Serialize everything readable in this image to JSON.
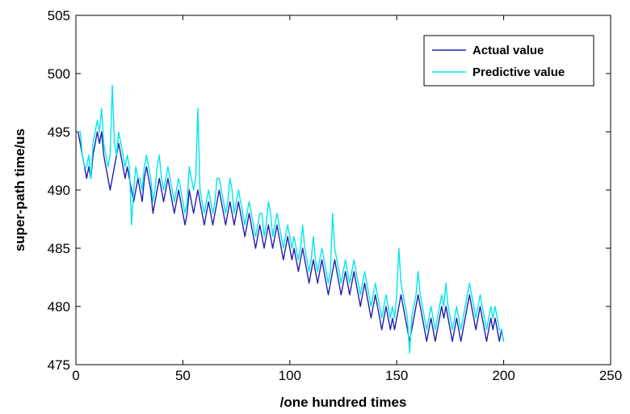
{
  "chart_data": {
    "type": "line",
    "title": "",
    "xlabel": "/one hundred times",
    "ylabel": "super-path time/us",
    "xlim": [
      0,
      250
    ],
    "ylim": [
      475,
      505
    ],
    "x_ticks": [
      0,
      50,
      100,
      150,
      200,
      250
    ],
    "y_ticks": [
      475,
      480,
      485,
      490,
      495,
      500,
      505
    ],
    "x_tick_labels": [
      "0",
      "50",
      "100",
      "150",
      "200",
      "250"
    ],
    "y_tick_labels": [
      "475",
      "480",
      "485",
      "490",
      "495",
      "500",
      "505"
    ],
    "grid": false,
    "legend_position": "top-right",
    "series": [
      {
        "name": "Actual value",
        "color": "#2020b0",
        "x_start": 1,
        "x_step": 1,
        "values": [
          495,
          494,
          493,
          492,
          491,
          492,
          491,
          493,
          494,
          495,
          494,
          495,
          493,
          492,
          491,
          490,
          491,
          492,
          493,
          494,
          493,
          492,
          491,
          492,
          491,
          490,
          489,
          490,
          491,
          490,
          489,
          491,
          492,
          491,
          490,
          488,
          489,
          490,
          491,
          490,
          489,
          490,
          491,
          490,
          489,
          488,
          489,
          490,
          489,
          488,
          487,
          488,
          490,
          489,
          488,
          489,
          490,
          489,
          488,
          487,
          488,
          489,
          488,
          487,
          488,
          489,
          490,
          489,
          488,
          487,
          488,
          489,
          488,
          487,
          488,
          489,
          488,
          487,
          486,
          487,
          488,
          487,
          486,
          485,
          486,
          487,
          486,
          485,
          486,
          487,
          486,
          485,
          486,
          487,
          486,
          485,
          484,
          485,
          486,
          485,
          484,
          485,
          484,
          483,
          484,
          485,
          484,
          483,
          482,
          483,
          484,
          483,
          482,
          483,
          484,
          483,
          482,
          481,
          482,
          483,
          484,
          483,
          482,
          481,
          482,
          483,
          482,
          481,
          482,
          483,
          482,
          481,
          480,
          481,
          482,
          481,
          480,
          479,
          480,
          481,
          480,
          479,
          478,
          479,
          480,
          479,
          478,
          479,
          478,
          479,
          480,
          481,
          480,
          479,
          478,
          477,
          478,
          479,
          480,
          481,
          480,
          479,
          478,
          477,
          478,
          479,
          478,
          477,
          478,
          479,
          480,
          479,
          480,
          479,
          478,
          477,
          478,
          479,
          478,
          477,
          478,
          479,
          480,
          481,
          480,
          479,
          478,
          479,
          480,
          479,
          478,
          477,
          478,
          479,
          478,
          479,
          478,
          477,
          478,
          477
        ]
      },
      {
        "name": "Predictive value",
        "color": "#00e5ee",
        "x_start": 1,
        "x_step": 1,
        "values": [
          495,
          495,
          493,
          492,
          492,
          493,
          491,
          494,
          495,
          496,
          495,
          497,
          494,
          493,
          492,
          493,
          499,
          494,
          493,
          495,
          494,
          493,
          492,
          493,
          492,
          487,
          490,
          492,
          491,
          491,
          490,
          492,
          493,
          492,
          491,
          489,
          490,
          492,
          493,
          491,
          490,
          491,
          492,
          491,
          490,
          489,
          490,
          491,
          490,
          489,
          488,
          489,
          492,
          491,
          490,
          491,
          497,
          490,
          489,
          488,
          489,
          490,
          489,
          488,
          489,
          491,
          491,
          490,
          489,
          488,
          489,
          491,
          490,
          488,
          489,
          490,
          489,
          488,
          487,
          488,
          489,
          488,
          487,
          486,
          487,
          488,
          488,
          486,
          487,
          489,
          488,
          486,
          487,
          488,
          487,
          486,
          485,
          486,
          487,
          486,
          485,
          486,
          485,
          484,
          485,
          487,
          485,
          484,
          483,
          484,
          486,
          484,
          483,
          484,
          485,
          484,
          483,
          482,
          483,
          488,
          485,
          484,
          483,
          482,
          483,
          484,
          483,
          482,
          483,
          484,
          483,
          482,
          481,
          482,
          483,
          482,
          481,
          480,
          481,
          482,
          481,
          480,
          479,
          480,
          481,
          480,
          479,
          480,
          479,
          481,
          485,
          482,
          481,
          480,
          479,
          476,
          479,
          480,
          481,
          483,
          481,
          480,
          479,
          478,
          479,
          480,
          479,
          478,
          479,
          480,
          481,
          480,
          482,
          480,
          479,
          478,
          479,
          480,
          479,
          478,
          479,
          480,
          481,
          482,
          481,
          480,
          479,
          480,
          481,
          480,
          479,
          478,
          479,
          480,
          479,
          480,
          479,
          478,
          478,
          477
        ]
      }
    ]
  },
  "legend": {
    "items": [
      {
        "label": "Actual value",
        "color": "#2020b0"
      },
      {
        "label": "Predictive value",
        "color": "#00e5ee"
      }
    ]
  }
}
